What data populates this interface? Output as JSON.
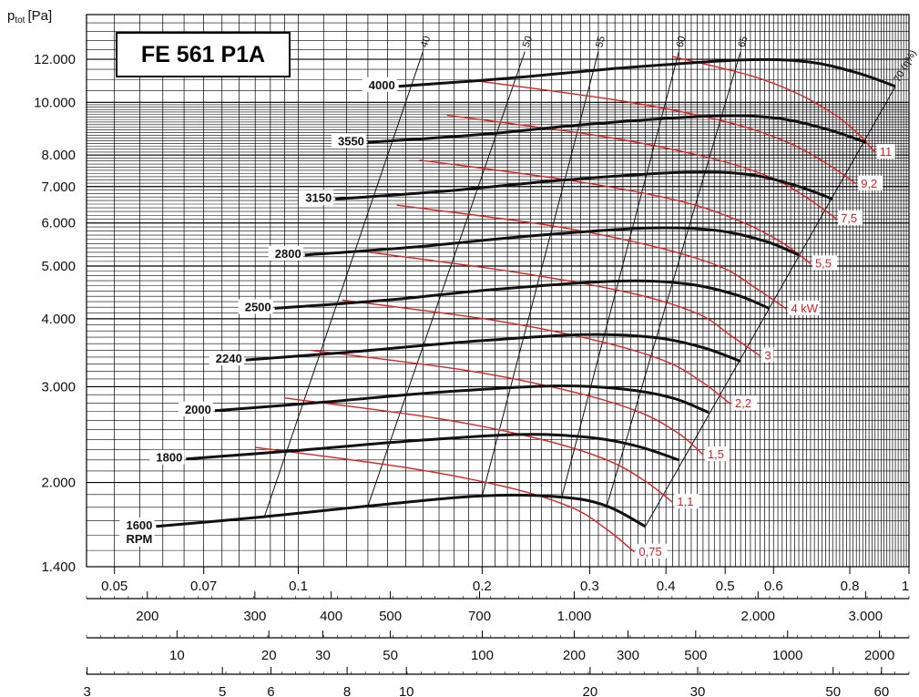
{
  "chart_data": {
    "type": "line",
    "title": "FE 561 P1A",
    "ylabel_main": "p",
    "ylabel_sub": "tot",
    "ylabel_unit": "[Pa]",
    "y_scale": "log",
    "ylim": [
      1400,
      14500
    ],
    "y_ticks": [
      {
        "v": 1400,
        "label": "1.400"
      },
      {
        "v": 2000,
        "label": "2.000"
      },
      {
        "v": 3000,
        "label": "3.000"
      },
      {
        "v": 4000,
        "label": "4.000"
      },
      {
        "v": 5000,
        "label": "5.000"
      },
      {
        "v": 6000,
        "label": "6.000"
      },
      {
        "v": 7000,
        "label": "7.000"
      },
      {
        "v": 8000,
        "label": "8.000"
      },
      {
        "v": 10000,
        "label": "10.000"
      },
      {
        "v": 12000,
        "label": "12.000"
      }
    ],
    "x_scale": "log",
    "xlim": [
      0.045,
      1.0
    ],
    "x_ticks": [
      {
        "v": 0.05,
        "label": "0.05"
      },
      {
        "v": 0.07,
        "label": "0.07"
      },
      {
        "v": 0.1,
        "label": "0.1"
      },
      {
        "v": 0.2,
        "label": "0.2"
      },
      {
        "v": 0.3,
        "label": "0.3"
      },
      {
        "v": 0.4,
        "label": "0.4"
      },
      {
        "v": 0.5,
        "label": "0.5"
      },
      {
        "v": 0.6,
        "label": "0.6"
      },
      {
        "v": 0.8,
        "label": "0.8"
      },
      {
        "v": 1,
        "label": "1"
      }
    ],
    "secondary_axes": [
      {
        "labels": [
          {
            "v": 0.0566,
            "label": "200"
          },
          {
            "v": 0.0849,
            "label": "300"
          },
          {
            "v": 0.1132,
            "label": "400"
          },
          {
            "v": 0.1415,
            "label": "500"
          },
          {
            "v": 0.1981,
            "label": "700"
          },
          {
            "v": 0.283,
            "label": "1.000"
          },
          {
            "v": 0.566,
            "label": "2.000"
          },
          {
            "v": 0.849,
            "label": "3.000"
          }
        ]
      },
      {
        "labels": [
          {
            "v": 0.0633,
            "label": "10"
          },
          {
            "v": 0.0895,
            "label": "20"
          },
          {
            "v": 0.1097,
            "label": "30"
          },
          {
            "v": 0.1415,
            "label": "50"
          },
          {
            "v": 0.2001,
            "label": "100"
          },
          {
            "v": 0.283,
            "label": "200"
          },
          {
            "v": 0.3466,
            "label": "300"
          },
          {
            "v": 0.4474,
            "label": "500"
          },
          {
            "v": 0.6328,
            "label": "1000"
          },
          {
            "v": 0.8948,
            "label": "2000"
          }
        ]
      },
      {
        "labels": [
          {
            "v": 0.0451,
            "label": "3"
          },
          {
            "v": 0.0751,
            "label": "5"
          },
          {
            "v": 0.0902,
            "label": "6"
          },
          {
            "v": 0.1202,
            "label": "8"
          },
          {
            "v": 0.1503,
            "label": "10"
          },
          {
            "v": 0.3005,
            "label": "20"
          },
          {
            "v": 0.4508,
            "label": "30"
          },
          {
            "v": 0.7513,
            "label": "50"
          },
          {
            "v": 0.9016,
            "label": "60"
          }
        ]
      }
    ],
    "rpm_curves": [
      {
        "name": "1600",
        "name2": "RPM",
        "points": [
          [
            0.0585,
            1660
          ],
          [
            0.088,
            1730
          ],
          [
            0.13,
            1810
          ],
          [
            0.2,
            1890
          ],
          [
            0.27,
            1880
          ],
          [
            0.32,
            1810
          ],
          [
            0.37,
            1660
          ]
        ]
      },
      {
        "name": "1800",
        "points": [
          [
            0.0655,
            2210
          ],
          [
            0.1,
            2290
          ],
          [
            0.15,
            2380
          ],
          [
            0.23,
            2450
          ],
          [
            0.3,
            2420
          ],
          [
            0.36,
            2330
          ],
          [
            0.42,
            2200
          ]
        ]
      },
      {
        "name": "2000",
        "points": [
          [
            0.073,
            2710
          ],
          [
            0.11,
            2810
          ],
          [
            0.17,
            2930
          ],
          [
            0.26,
            3010
          ],
          [
            0.34,
            2970
          ],
          [
            0.41,
            2860
          ],
          [
            0.47,
            2690
          ]
        ]
      },
      {
        "name": "2240",
        "points": [
          [
            0.082,
            3360
          ],
          [
            0.12,
            3470
          ],
          [
            0.19,
            3630
          ],
          [
            0.29,
            3740
          ],
          [
            0.38,
            3700
          ],
          [
            0.46,
            3540
          ],
          [
            0.53,
            3340
          ]
        ]
      },
      {
        "name": "2500",
        "points": [
          [
            0.0915,
            4180
          ],
          [
            0.14,
            4330
          ],
          [
            0.21,
            4530
          ],
          [
            0.33,
            4690
          ],
          [
            0.43,
            4640
          ],
          [
            0.52,
            4430
          ],
          [
            0.59,
            4180
          ]
        ]
      },
      {
        "name": "2800",
        "points": [
          [
            0.1025,
            5240
          ],
          [
            0.155,
            5420
          ],
          [
            0.24,
            5680
          ],
          [
            0.37,
            5870
          ],
          [
            0.48,
            5820
          ],
          [
            0.58,
            5560
          ],
          [
            0.66,
            5240
          ]
        ]
      },
      {
        "name": "3150",
        "points": [
          [
            0.115,
            6640
          ],
          [
            0.175,
            6870
          ],
          [
            0.27,
            7190
          ],
          [
            0.42,
            7430
          ],
          [
            0.54,
            7380
          ],
          [
            0.65,
            7040
          ],
          [
            0.75,
            6640
          ]
        ]
      },
      {
        "name": "3550",
        "points": [
          [
            0.13,
            8440
          ],
          [
            0.2,
            8730
          ],
          [
            0.3,
            9120
          ],
          [
            0.47,
            9430
          ],
          [
            0.6,
            9370
          ],
          [
            0.73,
            8940
          ],
          [
            0.85,
            8440
          ]
        ]
      },
      {
        "name": "4000",
        "points": [
          [
            0.146,
            10700
          ],
          [
            0.22,
            11070
          ],
          [
            0.34,
            11570
          ],
          [
            0.53,
            11960
          ],
          [
            0.68,
            11880
          ],
          [
            0.82,
            11340
          ],
          [
            0.95,
            10700
          ]
        ]
      }
    ],
    "power_curves": [
      {
        "name": "0,75",
        "points": [
          [
            0.085,
            2320
          ],
          [
            0.15,
            2130
          ],
          [
            0.22,
            1960
          ],
          [
            0.28,
            1800
          ],
          [
            0.32,
            1640
          ],
          [
            0.355,
            1490
          ]
        ]
      },
      {
        "name": "1,1",
        "points": [
          [
            0.095,
            2860
          ],
          [
            0.17,
            2620
          ],
          [
            0.25,
            2400
          ],
          [
            0.32,
            2200
          ],
          [
            0.37,
            2010
          ],
          [
            0.41,
            1840
          ]
        ]
      },
      {
        "name": "1,5",
        "points": [
          [
            0.105,
            3500
          ],
          [
            0.19,
            3210
          ],
          [
            0.28,
            2940
          ],
          [
            0.36,
            2700
          ],
          [
            0.42,
            2460
          ],
          [
            0.46,
            2250
          ]
        ]
      },
      {
        "name": "2,2",
        "points": [
          [
            0.118,
            4330
          ],
          [
            0.21,
            3970
          ],
          [
            0.31,
            3640
          ],
          [
            0.4,
            3340
          ],
          [
            0.46,
            3050
          ],
          [
            0.51,
            2790
          ]
        ]
      },
      {
        "name": "3",
        "points": [
          [
            0.131,
            5300
          ],
          [
            0.23,
            4860
          ],
          [
            0.35,
            4460
          ],
          [
            0.45,
            4090
          ],
          [
            0.51,
            3730
          ],
          [
            0.57,
            3420
          ]
        ]
      },
      {
        "name": "4 kW",
        "points": [
          [
            0.145,
            6470
          ],
          [
            0.26,
            5930
          ],
          [
            0.38,
            5440
          ],
          [
            0.49,
            4990
          ],
          [
            0.56,
            4560
          ],
          [
            0.63,
            4170
          ]
        ]
      },
      {
        "name": "5,5",
        "points": [
          [
            0.158,
            7830
          ],
          [
            0.28,
            7180
          ],
          [
            0.42,
            6590
          ],
          [
            0.53,
            6040
          ],
          [
            0.62,
            5520
          ],
          [
            0.69,
            5050
          ]
        ]
      },
      {
        "name": "7,5",
        "points": [
          [
            0.175,
            9470
          ],
          [
            0.31,
            8680
          ],
          [
            0.46,
            7960
          ],
          [
            0.59,
            7300
          ],
          [
            0.68,
            6680
          ],
          [
            0.76,
            6110
          ]
        ]
      },
      {
        "name": "9,2",
        "points": [
          [
            0.19,
            11000
          ],
          [
            0.34,
            10050
          ],
          [
            0.5,
            9220
          ],
          [
            0.63,
            8460
          ],
          [
            0.73,
            7740
          ],
          [
            0.82,
            7080
          ]
        ]
      },
      {
        "name": "11",
        "points": [
          [
            0.41,
            12140
          ],
          [
            0.55,
            11200
          ],
          [
            0.66,
            10350
          ],
          [
            0.75,
            9550
          ],
          [
            0.82,
            8820
          ],
          [
            0.88,
            8100
          ]
        ]
      }
    ],
    "efficiency_lines": [
      {
        "name": "40",
        "points": [
          [
            0.088,
            1730
          ],
          [
            0.16,
            12400
          ]
        ]
      },
      {
        "name": "50",
        "points": [
          [
            0.13,
            1810
          ],
          [
            0.235,
            12400
          ]
        ]
      },
      {
        "name": "55",
        "points": [
          [
            0.2,
            1890
          ],
          [
            0.31,
            12400
          ]
        ]
      },
      {
        "name": "60",
        "points": [
          [
            0.27,
            1880
          ],
          [
            0.42,
            12400
          ]
        ]
      },
      {
        "name": "65",
        "points": [
          [
            0.32,
            1810
          ],
          [
            0.53,
            12400
          ]
        ]
      },
      {
        "name": "70 (η%)",
        "points": [
          [
            0.37,
            1660
          ],
          [
            0.95,
            10700
          ]
        ]
      }
    ],
    "colors": {
      "rpm": "#111111",
      "power": "#e02020",
      "grid": "#000000",
      "efficiency": "#111111"
    },
    "grid": true
  }
}
